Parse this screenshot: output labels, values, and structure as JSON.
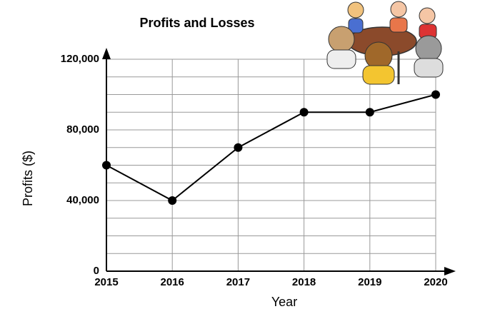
{
  "chart_data": {
    "type": "line",
    "title": "Profits and Losses",
    "x_label": "Year",
    "y_label": "Profits ($)",
    "x": [
      2015,
      2016,
      2017,
      2018,
      2019,
      2020
    ],
    "series": [
      {
        "name": "Profits",
        "color": "#000000",
        "values": [
          60000,
          40000,
          70000,
          90000,
          90000,
          100000
        ]
      }
    ],
    "xlim": [
      2015,
      2020
    ],
    "xticks": [
      2015,
      2016,
      2017,
      2018,
      2019,
      2020
    ],
    "ylim": [
      0,
      120000
    ],
    "yticks": [
      0,
      {
        "value": 40000,
        "label": "40,000"
      },
      {
        "value": 80000,
        "label": "80,000"
      },
      {
        "value": 120000,
        "label": "120,000"
      }
    ],
    "minor_yticks": [
      10000,
      20000,
      30000,
      50000,
      60000,
      70000,
      90000,
      100000,
      110000
    ],
    "grid": true
  }
}
